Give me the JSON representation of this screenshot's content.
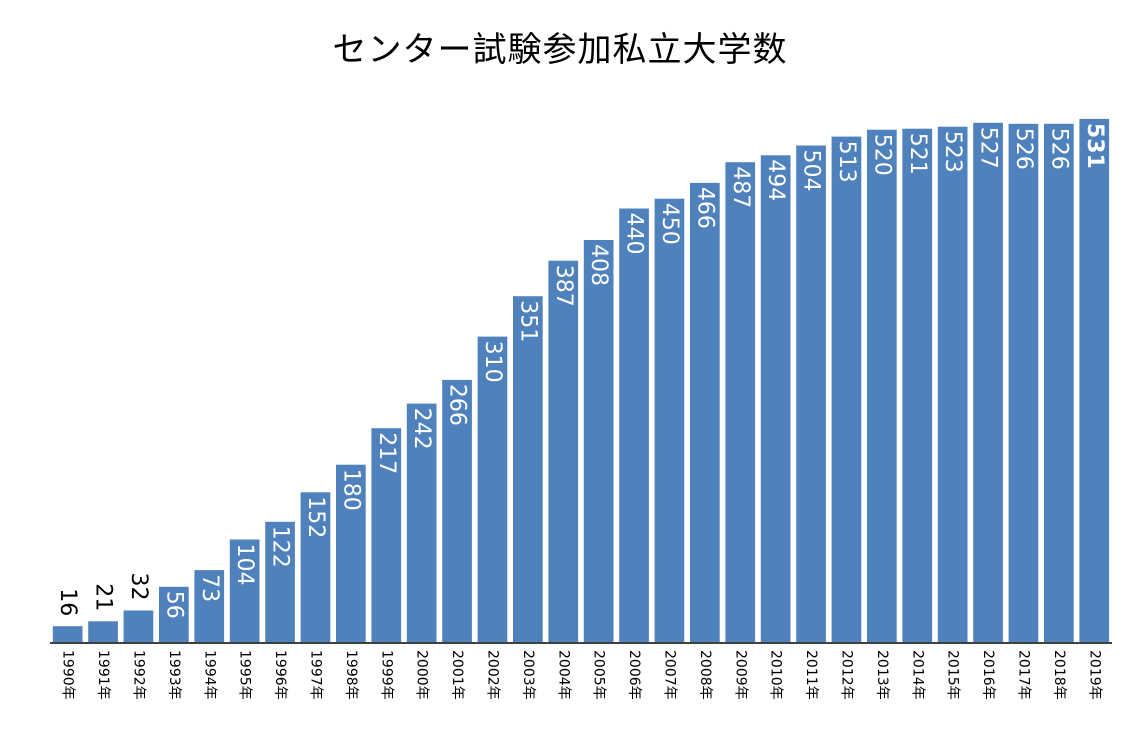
{
  "chart_data": {
    "type": "bar",
    "title": "センター試験参加私立大学数",
    "xlabel": "",
    "ylabel": "",
    "ylim": [
      0,
      540
    ],
    "grid": false,
    "legend": "none",
    "bar_color": "#4f81bd",
    "categories": [
      "1990年",
      "1991年",
      "1992年",
      "1993年",
      "1994年",
      "1995年",
      "1996年",
      "1997年",
      "1998年",
      "1999年",
      "2000年",
      "2001年",
      "2002年",
      "2003年",
      "2004年",
      "2005年",
      "2006年",
      "2007年",
      "2008年",
      "2009年",
      "2010年",
      "2011年",
      "2012年",
      "2013年",
      "2014年",
      "2015年",
      "2016年",
      "2017年",
      "2018年",
      "2019年"
    ],
    "values": [
      16,
      21,
      32,
      56,
      73,
      104,
      122,
      152,
      180,
      217,
      242,
      266,
      310,
      351,
      387,
      408,
      440,
      450,
      466,
      487,
      494,
      504,
      513,
      520,
      521,
      523,
      527,
      526,
      526,
      531
    ]
  }
}
